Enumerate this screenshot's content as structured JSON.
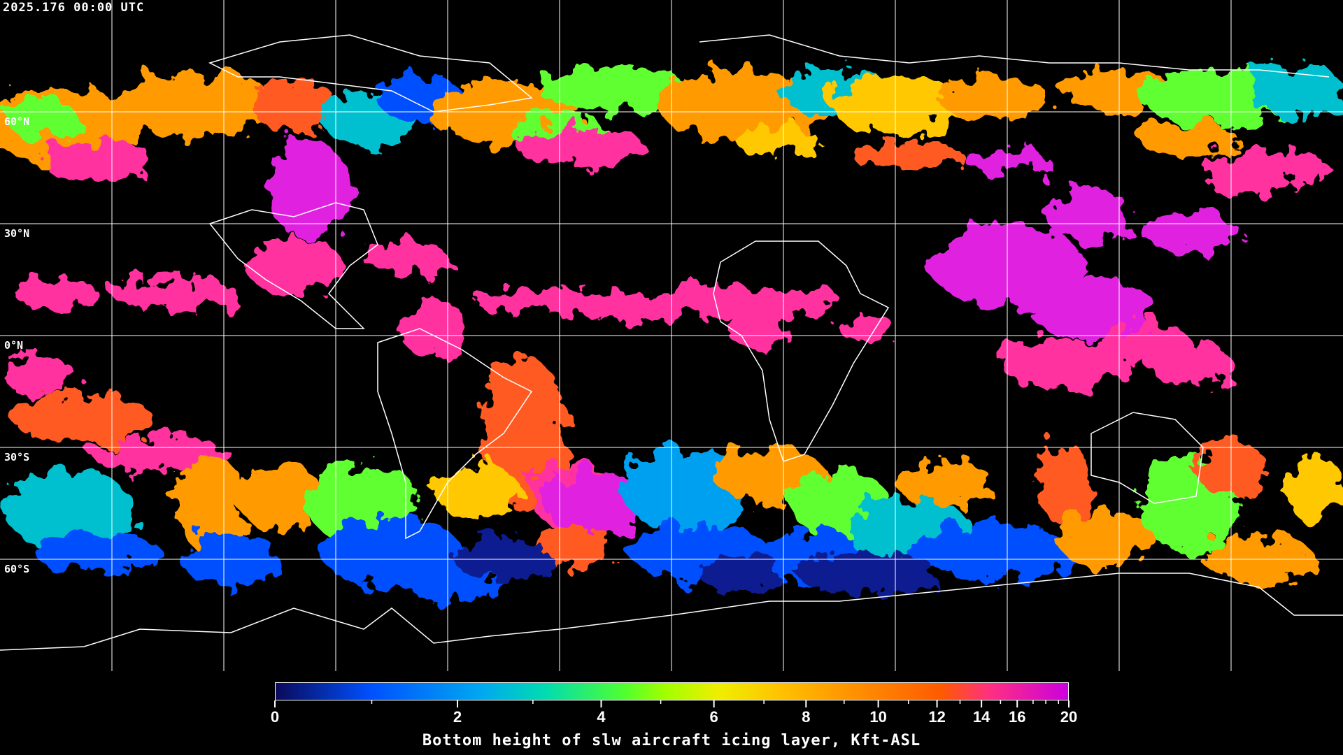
{
  "header": {
    "timestamp": "2025.176 00:00 UTC"
  },
  "map": {
    "projection": "equirectangular",
    "gridline_spacing_deg": 30,
    "latitude_labels": [
      "60°N",
      "30°N",
      "0°N",
      "30°S",
      "60°S"
    ],
    "background_color": "#000000",
    "coastline_color": "#ffffff",
    "gridline_color": "#ffffff"
  },
  "colorbar": {
    "label": "Bottom height of slw aircraft icing layer, Kft-ASL",
    "min": 0,
    "max": 20,
    "tick_labels": [
      "0",
      "2",
      "4",
      "6",
      "8",
      "10",
      "12",
      "14",
      "16",
      "20"
    ],
    "minor_ticks": [
      1,
      3,
      5,
      7,
      9,
      11,
      13,
      15,
      17,
      18,
      19
    ],
    "colors": [
      "#0a0a5a",
      "#0050ff",
      "#00a8f0",
      "#00dcb0",
      "#50ff30",
      "#a0ff00",
      "#f0ee00",
      "#ffc000",
      "#ffa000",
      "#ff5a00",
      "#ff3080",
      "#cc00dd"
    ]
  }
}
